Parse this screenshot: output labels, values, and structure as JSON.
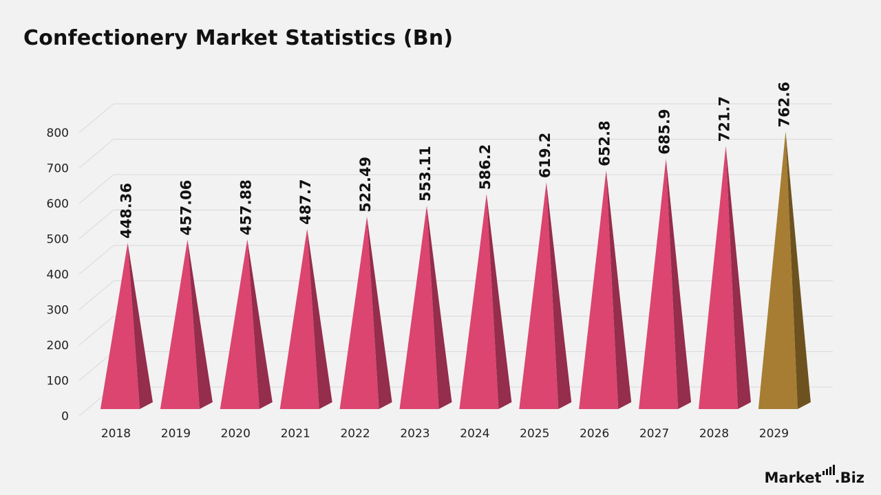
{
  "header": {
    "title": "Confectionery Market Statistics (Bn)"
  },
  "brand": {
    "logo_text_a": "Market",
    "logo_text_b": ".Biz"
  },
  "colors": {
    "bar_front": "#db456f",
    "bar_side": "#952d4c",
    "bar_highlight_front": "#a67d33",
    "bar_highlight_side": "#6d5220",
    "grid": "#d8d8d8"
  },
  "chart_data": {
    "type": "bar",
    "title": "Confectionery Market Statistics (Bn)",
    "xlabel": "",
    "ylabel": "",
    "categories": [
      "2018",
      "2019",
      "2020",
      "2021",
      "2022",
      "2023",
      "2024",
      "2025",
      "2026",
      "2027",
      "2028",
      "2029"
    ],
    "values": [
      448.36,
      457.06,
      457.88,
      487.7,
      522.49,
      553.11,
      586.2,
      619.2,
      652.8,
      685.9,
      721.7,
      762.6
    ],
    "data_labels": [
      "448.36",
      "457.06",
      "457.88",
      "487.7",
      "522.49",
      "553.11",
      "586.2",
      "619.2",
      "652.8",
      "685.9",
      "721.7",
      "762.6"
    ],
    "yticks": [
      "0",
      "100",
      "200",
      "300",
      "400",
      "500",
      "600",
      "700",
      "800"
    ],
    "ylim": [
      0,
      800
    ],
    "highlight_category": "2029",
    "bar_shape": "pyramid",
    "grid": true,
    "legend": "none"
  }
}
